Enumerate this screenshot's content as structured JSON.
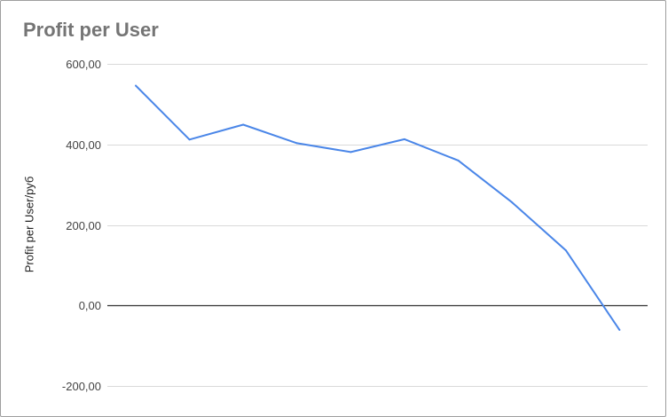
{
  "chart_data": {
    "type": "line",
    "title": "Profit per User",
    "xlabel": "",
    "ylabel": "Profit per User/руб",
    "ylim": [
      -200,
      600
    ],
    "y_ticks": [
      "600,00",
      "400,00",
      "200,00",
      "0,00",
      "-200,00"
    ],
    "y_tick_values": [
      600,
      400,
      200,
      0,
      -200
    ],
    "x": [
      1,
      2,
      3,
      4,
      5,
      6,
      7,
      8,
      9,
      10
    ],
    "series": [
      {
        "values": [
          546,
          412,
          449,
          403,
          381,
          413,
          360,
          256,
          137,
          -61
        ],
        "color": "#4a86e8"
      }
    ],
    "grid": true,
    "legend": "none"
  }
}
